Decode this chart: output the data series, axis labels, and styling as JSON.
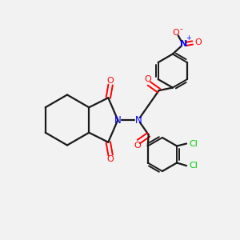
{
  "bg_color": "#f2f2f2",
  "bond_color": "#1a1a1a",
  "nitrogen_color": "#0000ff",
  "oxygen_color": "#ff0000",
  "chlorine_color": "#00cc00",
  "figsize": [
    3.0,
    3.0
  ],
  "dpi": 100,
  "xlim": [
    0,
    10
  ],
  "ylim": [
    0,
    10
  ]
}
